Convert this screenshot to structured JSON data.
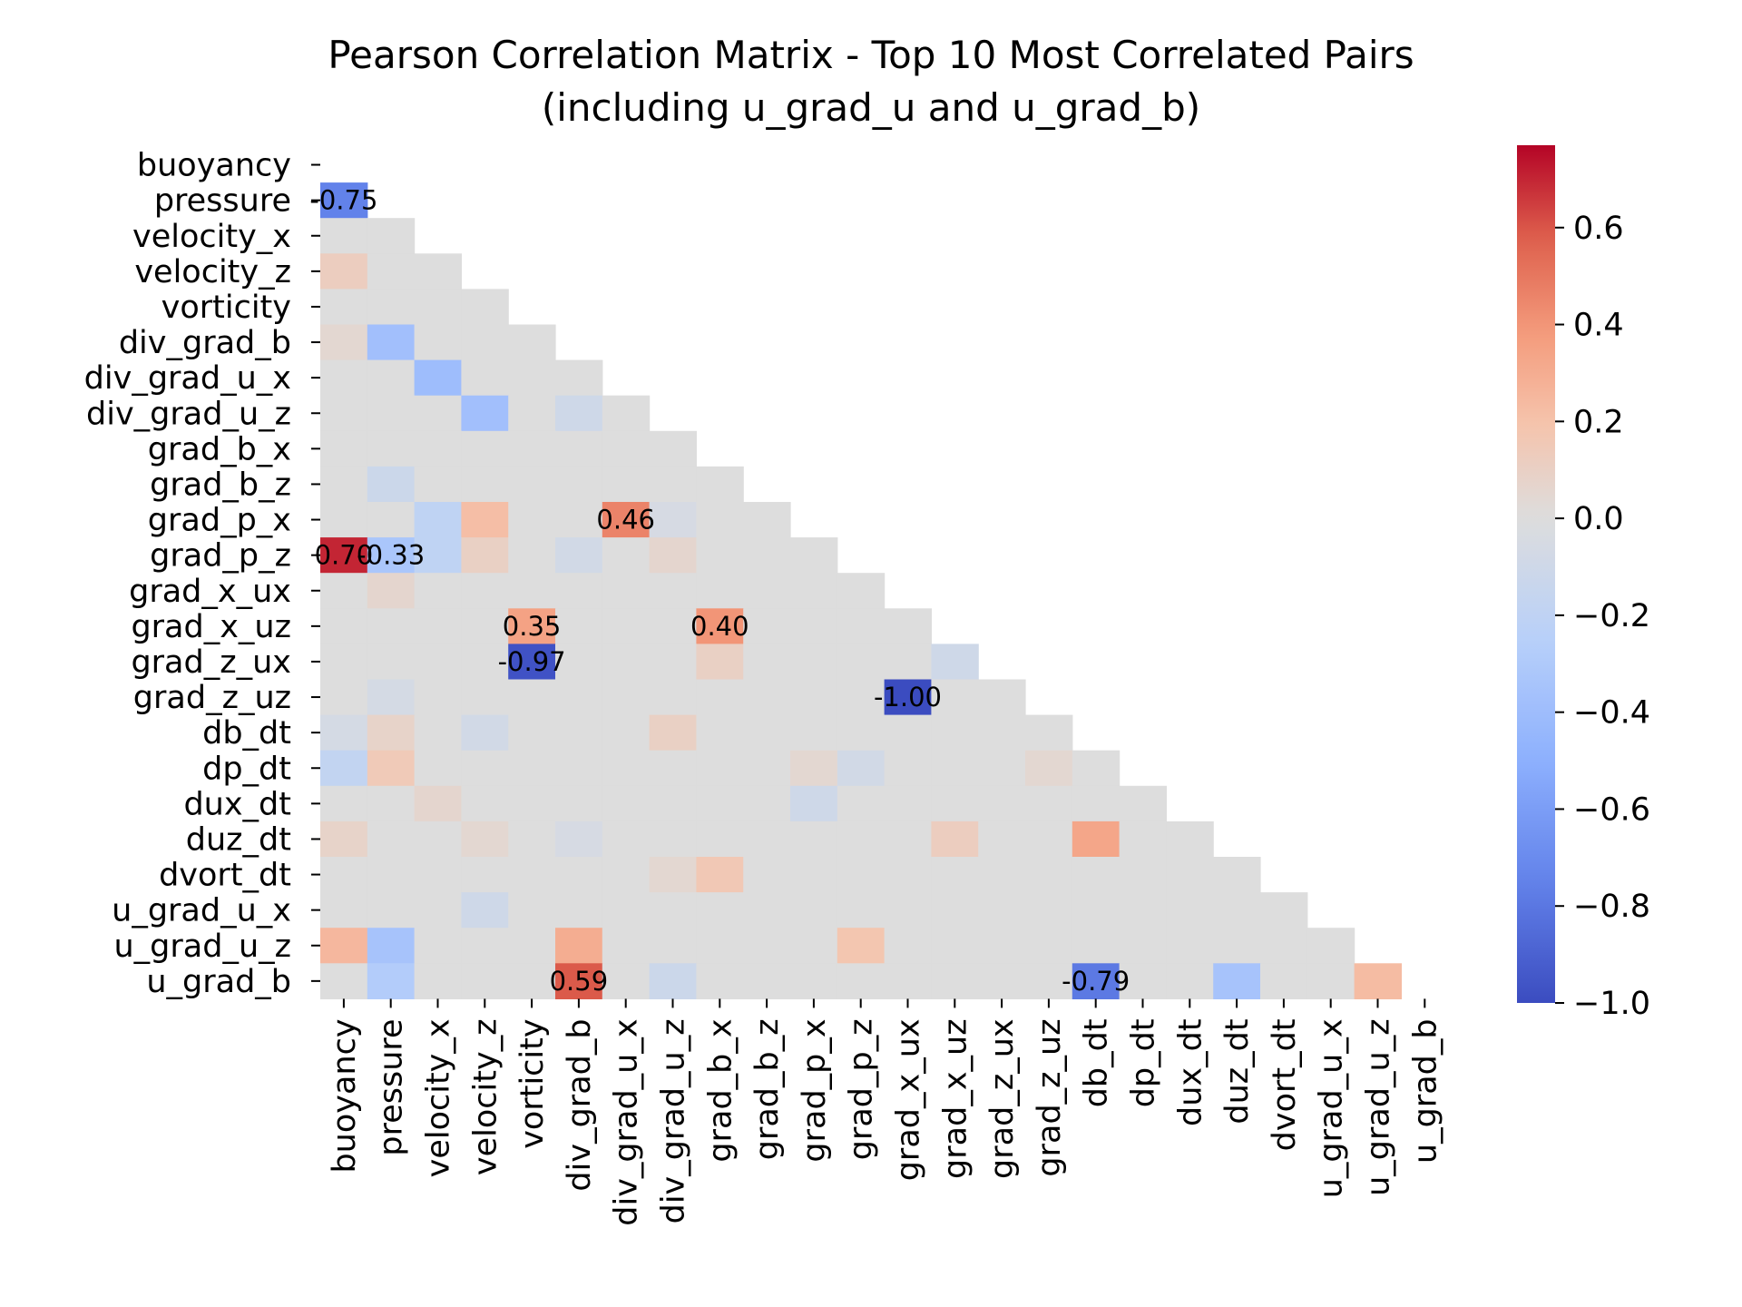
{
  "chart_data": {
    "type": "heatmap",
    "title": "Pearson Correlation Matrix - Top 10 Most Correlated Pairs",
    "subtitle": "(including u_grad_u and u_grad_b)",
    "colormap": "coolwarm",
    "mask": "upper triangle including diagonal",
    "variables": [
      "buoyancy",
      "pressure",
      "velocity_x",
      "velocity_z",
      "vorticity",
      "div_grad_b",
      "div_grad_u_x",
      "div_grad_u_z",
      "grad_b_x",
      "grad_b_z",
      "grad_p_x",
      "grad_p_z",
      "grad_x_ux",
      "grad_x_uz",
      "grad_z_ux",
      "grad_z_uz",
      "db_dt",
      "dp_dt",
      "dux_dt",
      "duz_dt",
      "dvort_dt",
      "u_grad_u_x",
      "u_grad_u_z",
      "u_grad_b"
    ],
    "colorbar": {
      "vmin": -1.0,
      "vmax": 0.77,
      "ticks": [
        0.6,
        0.4,
        0.2,
        0.0,
        -0.2,
        -0.4,
        -0.6,
        -0.8,
        -1.0
      ],
      "tick_labels": [
        "0.6",
        "0.4",
        "0.2",
        "0.0",
        "−0.2",
        "−0.4",
        "−0.6",
        "−0.8",
        "−1.0"
      ]
    },
    "cells": [
      {
        "row": "pressure",
        "col": "buoyancy",
        "value": -0.75,
        "label": "-0.75"
      },
      {
        "row": "velocity_z",
        "col": "buoyancy",
        "value": 0.12
      },
      {
        "row": "div_grad_b",
        "col": "buoyancy",
        "value": 0.05
      },
      {
        "row": "div_grad_b",
        "col": "pressure",
        "value": -0.38
      },
      {
        "row": "div_grad_u_x",
        "col": "velocity_x",
        "value": -0.4
      },
      {
        "row": "div_grad_u_z",
        "col": "velocity_z",
        "value": -0.38
      },
      {
        "row": "div_grad_u_z",
        "col": "div_grad_b",
        "value": -0.1
      },
      {
        "row": "grad_b_z",
        "col": "pressure",
        "value": -0.12
      },
      {
        "row": "grad_p_x",
        "col": "velocity_x",
        "value": -0.2
      },
      {
        "row": "grad_p_x",
        "col": "velocity_z",
        "value": 0.22
      },
      {
        "row": "grad_p_x",
        "col": "div_grad_u_x",
        "value": 0.46,
        "label": "0.46"
      },
      {
        "row": "grad_p_x",
        "col": "div_grad_u_z",
        "value": -0.05
      },
      {
        "row": "grad_p_z",
        "col": "buoyancy",
        "value": 0.7,
        "label": "0.70"
      },
      {
        "row": "grad_p_z",
        "col": "pressure",
        "value": -0.33,
        "label": "-0.33"
      },
      {
        "row": "grad_p_z",
        "col": "velocity_x",
        "value": -0.2
      },
      {
        "row": "grad_p_z",
        "col": "velocity_z",
        "value": 0.1
      },
      {
        "row": "grad_p_z",
        "col": "div_grad_b",
        "value": -0.08
      },
      {
        "row": "grad_p_z",
        "col": "div_grad_u_z",
        "value": 0.06
      },
      {
        "row": "grad_x_ux",
        "col": "pressure",
        "value": 0.06
      },
      {
        "row": "grad_x_uz",
        "col": "vorticity",
        "value": 0.35,
        "label": "0.35"
      },
      {
        "row": "grad_x_uz",
        "col": "grad_b_x",
        "value": 0.4,
        "label": "0.40"
      },
      {
        "row": "grad_z_ux",
        "col": "vorticity",
        "value": -0.97,
        "label": "-0.97"
      },
      {
        "row": "grad_z_ux",
        "col": "grad_b_x",
        "value": 0.1
      },
      {
        "row": "grad_z_ux",
        "col": "grad_x_uz",
        "value": -0.1
      },
      {
        "row": "grad_z_uz",
        "col": "pressure",
        "value": -0.06
      },
      {
        "row": "grad_z_uz",
        "col": "grad_x_ux",
        "value": -1.0,
        "label": "-1.00"
      },
      {
        "row": "db_dt",
        "col": "buoyancy",
        "value": -0.06
      },
      {
        "row": "db_dt",
        "col": "pressure",
        "value": 0.08
      },
      {
        "row": "db_dt",
        "col": "velocity_z",
        "value": -0.08
      },
      {
        "row": "db_dt",
        "col": "div_grad_u_z",
        "value": 0.1
      },
      {
        "row": "dp_dt",
        "col": "buoyancy",
        "value": -0.18
      },
      {
        "row": "dp_dt",
        "col": "pressure",
        "value": 0.15
      },
      {
        "row": "dp_dt",
        "col": "grad_p_x",
        "value": 0.05
      },
      {
        "row": "dp_dt",
        "col": "grad_p_z",
        "value": -0.08
      },
      {
        "row": "dp_dt",
        "col": "grad_z_uz",
        "value": 0.05
      },
      {
        "row": "dux_dt",
        "col": "velocity_x",
        "value": 0.06
      },
      {
        "row": "dux_dt",
        "col": "grad_p_x",
        "value": -0.1
      },
      {
        "row": "duz_dt",
        "col": "buoyancy",
        "value": 0.08
      },
      {
        "row": "duz_dt",
        "col": "velocity_z",
        "value": 0.05
      },
      {
        "row": "duz_dt",
        "col": "div_grad_b",
        "value": -0.05
      },
      {
        "row": "duz_dt",
        "col": "grad_x_uz",
        "value": 0.12
      },
      {
        "row": "duz_dt",
        "col": "db_dt",
        "value": 0.33
      },
      {
        "row": "dvort_dt",
        "col": "div_grad_u_z",
        "value": 0.05
      },
      {
        "row": "dvort_dt",
        "col": "grad_b_x",
        "value": 0.16
      },
      {
        "row": "u_grad_u_x",
        "col": "velocity_z",
        "value": -0.1
      },
      {
        "row": "u_grad_u_z",
        "col": "buoyancy",
        "value": 0.25
      },
      {
        "row": "u_grad_u_z",
        "col": "pressure",
        "value": -0.35
      },
      {
        "row": "u_grad_u_z",
        "col": "div_grad_b",
        "value": 0.3
      },
      {
        "row": "u_grad_u_z",
        "col": "grad_p_z",
        "value": 0.18
      },
      {
        "row": "u_grad_b",
        "col": "pressure",
        "value": -0.28
      },
      {
        "row": "u_grad_b",
        "col": "div_grad_b",
        "value": 0.59,
        "label": "0.59"
      },
      {
        "row": "u_grad_b",
        "col": "div_grad_u_z",
        "value": -0.12
      },
      {
        "row": "u_grad_b",
        "col": "db_dt",
        "value": -0.79,
        "label": "-0.79"
      },
      {
        "row": "u_grad_b",
        "col": "duz_dt",
        "value": -0.35
      },
      {
        "row": "u_grad_b",
        "col": "u_grad_u_z",
        "value": 0.23
      }
    ]
  }
}
